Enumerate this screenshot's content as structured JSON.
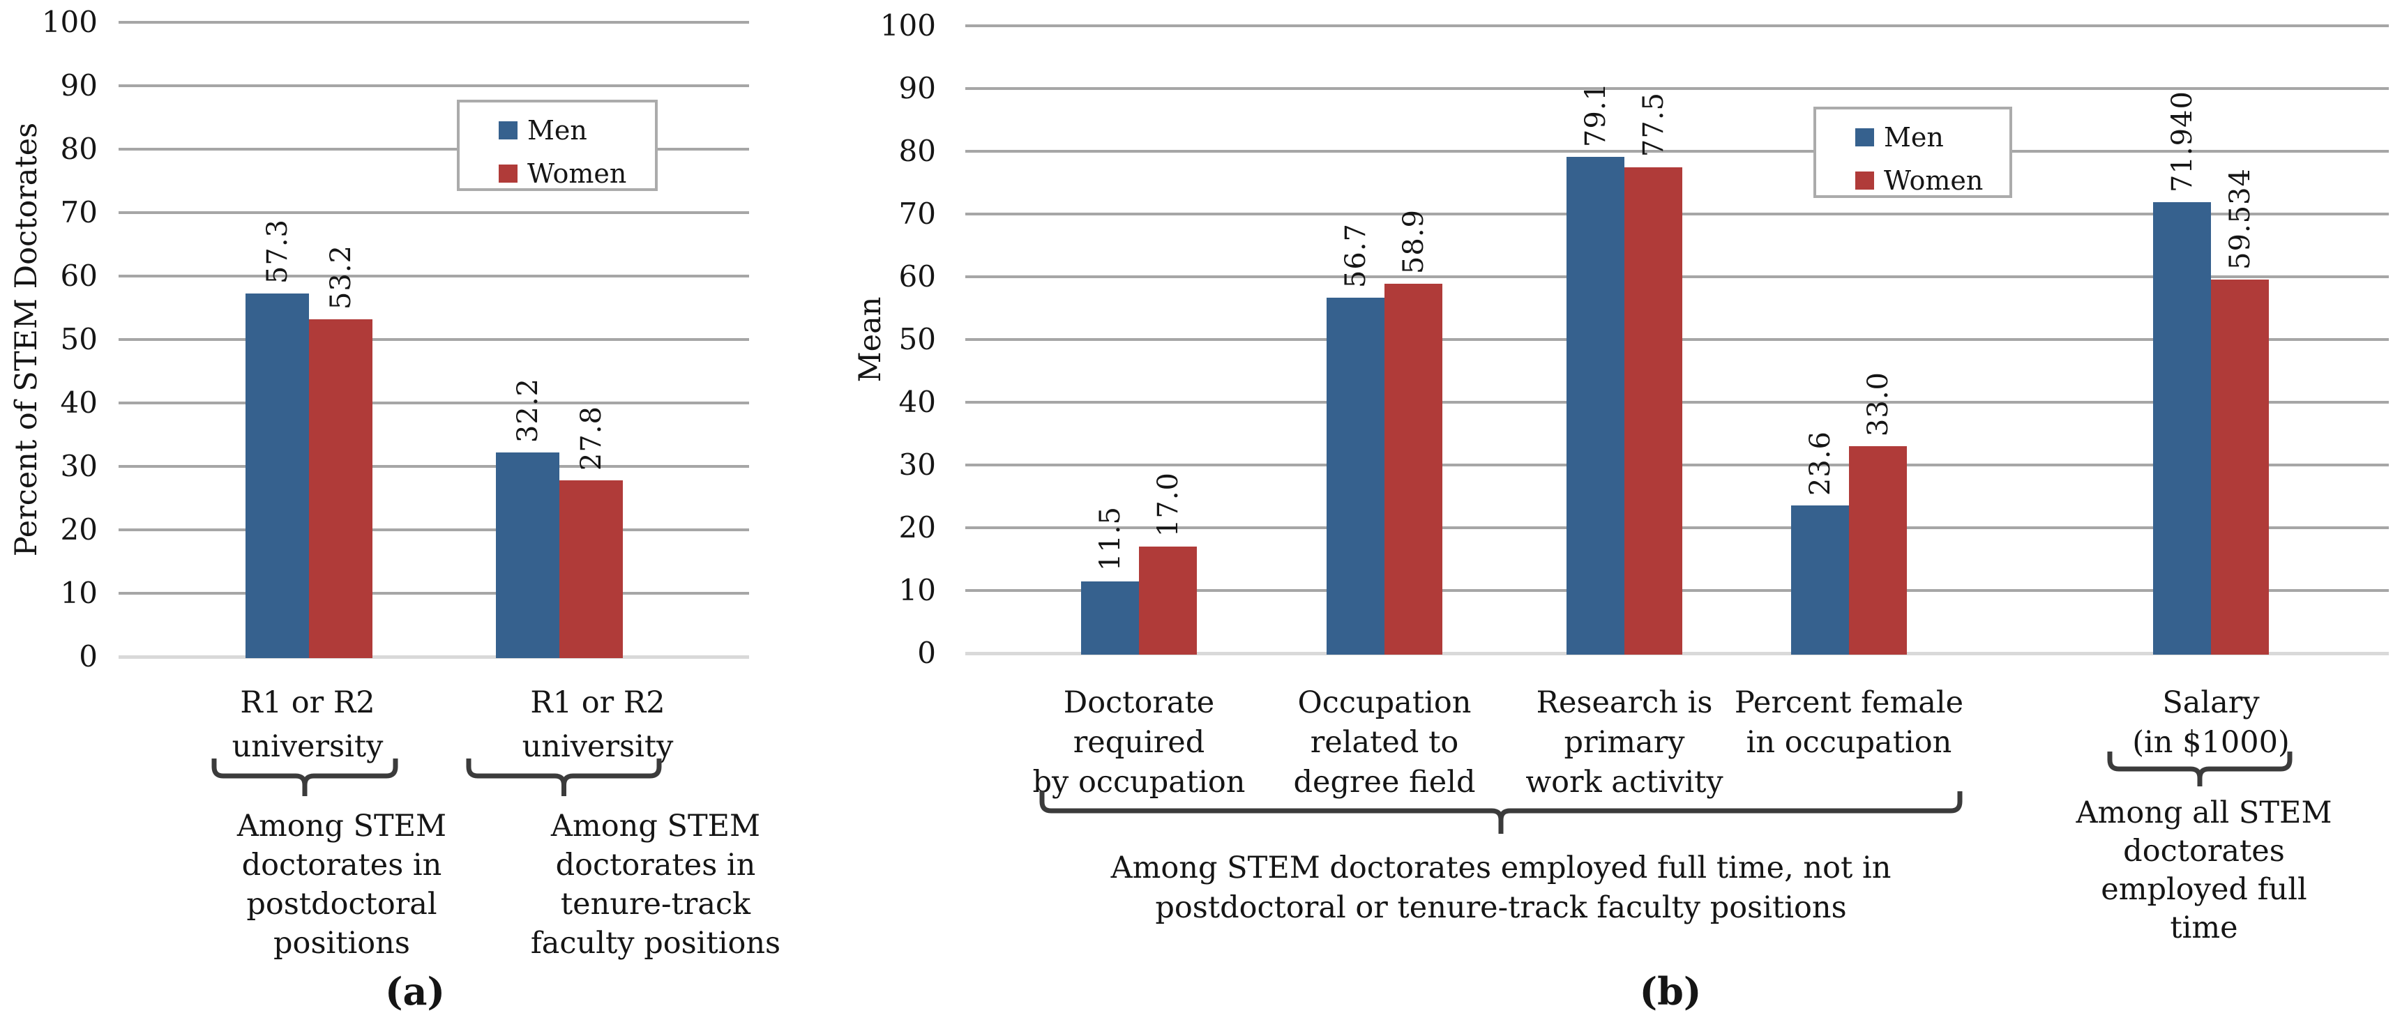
{
  "legend": {
    "men": "Men",
    "women": "Women"
  },
  "colors": {
    "men": "#36618E",
    "women": "#B03B39",
    "gridline": "#A6A6A6",
    "baseline": "#D9D9D9",
    "brace": "#3B3B3B",
    "text": "#151515"
  },
  "chart_data": [
    {
      "id": "a",
      "type": "bar",
      "panel_label": "(a)",
      "ylabel": "Percent of STEM Doctorates",
      "ylim": [
        0,
        100
      ],
      "ytick_step": 10,
      "grid": true,
      "legend_position": "upper center",
      "categories": [
        [
          "R1 or R2",
          "university"
        ],
        [
          "R1 or R2",
          "university"
        ]
      ],
      "series": [
        {
          "name": "Men",
          "values": [
            57.3,
            32.2
          ]
        },
        {
          "name": "Women",
          "values": [
            53.2,
            27.8
          ]
        }
      ],
      "value_labels": [
        [
          "57.3",
          "32.2"
        ],
        [
          "53.2",
          "27.8"
        ]
      ],
      "annotations": [
        [
          "Among STEM",
          "doctorates in",
          "postdoctoral",
          "positions"
        ],
        [
          "Among STEM",
          "doctorates in",
          "tenure-track",
          "faculty positions"
        ]
      ]
    },
    {
      "id": "b",
      "type": "bar",
      "panel_label": "(b)",
      "ylabel": "Mean",
      "ylim": [
        0,
        100
      ],
      "ytick_step": 10,
      "grid": true,
      "legend_position": "upper right",
      "categories": [
        [
          "Doctorate",
          "required",
          "by occupation"
        ],
        [
          "Occupation",
          "related to",
          "degree field"
        ],
        [
          "Research is",
          "primary",
          "work activity"
        ],
        [
          "Percent female",
          "in occupation"
        ],
        [
          "Salary",
          "(in $1000)"
        ]
      ],
      "series": [
        {
          "name": "Men",
          "values": [
            11.5,
            56.7,
            79.1,
            23.6,
            71.94
          ]
        },
        {
          "name": "Women",
          "values": [
            17.0,
            58.9,
            77.5,
            33.0,
            59.534
          ]
        }
      ],
      "value_labels": [
        [
          "11.5",
          "56.7",
          "79.1",
          "23.6",
          "71.940"
        ],
        [
          "17.0",
          "58.9",
          "77.5",
          "33.0",
          "59.534"
        ]
      ],
      "annotations": [
        [
          "Among STEM doctorates employed full time, not in",
          "postdoctoral or tenure-track faculty  positions"
        ],
        [
          "Among all STEM",
          "doctorates",
          "employed full",
          "time"
        ]
      ]
    }
  ]
}
